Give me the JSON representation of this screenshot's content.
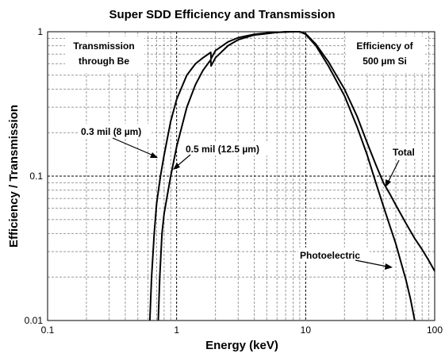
{
  "chart_data": {
    "type": "line",
    "title": "Super SDD Efficiency and Transmission",
    "xlabel": "Energy (keV)",
    "ylabel": "Efficiency / Transmission",
    "x_scale": "log",
    "y_scale": "log",
    "xlim": [
      0.1,
      100
    ],
    "ylim": [
      0.01,
      1
    ],
    "x_ticks": [
      0.1,
      1,
      10,
      100
    ],
    "x_tick_labels": [
      "0.1",
      "1",
      "10",
      "100"
    ],
    "y_ticks": [
      0.01,
      0.1,
      1
    ],
    "y_tick_labels": [
      "0.01",
      "0.1",
      "1"
    ],
    "grid": "dashed, major and minor",
    "series": [
      {
        "name": "0.3 mil (8 µm)",
        "points": [
          [
            0.62,
            0.01
          ],
          [
            0.64,
            0.02
          ],
          [
            0.67,
            0.04
          ],
          [
            0.7,
            0.065
          ],
          [
            0.75,
            0.1
          ],
          [
            0.8,
            0.14
          ],
          [
            0.9,
            0.24
          ],
          [
            1.0,
            0.34
          ],
          [
            1.2,
            0.5
          ],
          [
            1.4,
            0.6
          ],
          [
            1.6,
            0.66
          ],
          [
            1.84,
            0.72
          ],
          [
            1.85,
            0.65
          ],
          [
            2.0,
            0.74
          ],
          [
            2.5,
            0.85
          ],
          [
            3.0,
            0.91
          ],
          [
            4.0,
            0.96
          ],
          [
            5.0,
            0.98
          ],
          [
            6.0,
            0.99
          ],
          [
            7.0,
            1.0
          ],
          [
            8.0,
            1.0
          ],
          [
            9.0,
            1.0
          ],
          [
            10.0,
            0.97
          ],
          [
            12.0,
            0.82
          ],
          [
            15.0,
            0.62
          ],
          [
            20.0,
            0.4
          ],
          [
            25.0,
            0.26
          ],
          [
            30.0,
            0.17
          ],
          [
            35.0,
            0.12
          ],
          [
            40.0,
            0.09
          ],
          [
            45.0,
            0.075
          ],
          [
            50.0,
            0.063
          ],
          [
            60.0,
            0.047
          ],
          [
            70.0,
            0.037
          ],
          [
            80.0,
            0.031
          ],
          [
            90.0,
            0.026
          ],
          [
            100.0,
            0.022
          ]
        ]
      },
      {
        "name": "0.5 mil (12.5 µm)",
        "points": [
          [
            0.72,
            0.01
          ],
          [
            0.74,
            0.02
          ],
          [
            0.77,
            0.04
          ],
          [
            0.8,
            0.055
          ],
          [
            0.85,
            0.075
          ],
          [
            0.9,
            0.1
          ],
          [
            1.0,
            0.16
          ],
          [
            1.2,
            0.3
          ],
          [
            1.4,
            0.43
          ],
          [
            1.6,
            0.54
          ],
          [
            1.84,
            0.64
          ],
          [
            1.85,
            0.58
          ],
          [
            2.0,
            0.66
          ],
          [
            2.5,
            0.8
          ],
          [
            3.0,
            0.88
          ],
          [
            4.0,
            0.95
          ],
          [
            5.0,
            0.97
          ],
          [
            6.0,
            0.99
          ],
          [
            7.0,
            0.995
          ],
          [
            8.0,
            1.0
          ],
          [
            9.0,
            1.0
          ],
          [
            10.0,
            0.96
          ],
          [
            12.0,
            0.8
          ],
          [
            15.0,
            0.58
          ],
          [
            20.0,
            0.36
          ],
          [
            25.0,
            0.22
          ],
          [
            30.0,
            0.14
          ],
          [
            35.0,
            0.09
          ],
          [
            40.0,
            0.062
          ],
          [
            45.0,
            0.045
          ],
          [
            50.0,
            0.034
          ],
          [
            55.0,
            0.025
          ],
          [
            60.0,
            0.019
          ],
          [
            65.0,
            0.014
          ],
          [
            70.0,
            0.01
          ]
        ]
      }
    ],
    "annotations": [
      {
        "text": "Transmission",
        "text2": "through Be"
      },
      {
        "text": "Efficiency of",
        "text2": "500 µm Si"
      },
      {
        "text": "0.3 mil (8 µm)"
      },
      {
        "text": "0.5 mil (12.5 µm)"
      },
      {
        "text": "Total"
      },
      {
        "text": "Photoelectric"
      }
    ]
  }
}
